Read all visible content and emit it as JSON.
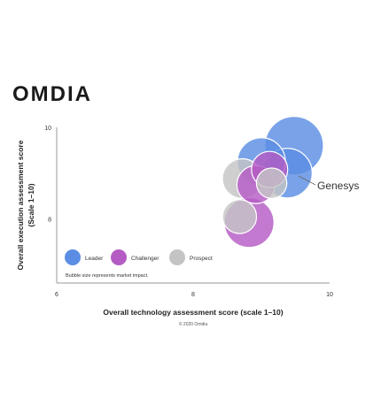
{
  "brand": {
    "logo_text": "OMDIA"
  },
  "footer": {
    "copyright": "© 2020 Omdia"
  },
  "chart_data": {
    "type": "bubble",
    "xlabel": "Overall technology assessment score (scale 1–10)",
    "ylabel_line1": "Overall execution assessment score",
    "ylabel_line2": "(Scale 1–10)",
    "x_ticks": [
      6,
      8,
      10
    ],
    "y_ticks": [
      8,
      10
    ],
    "xlim": [
      6,
      10
    ],
    "ylim": [
      6.6,
      10
    ],
    "grid": false,
    "legend": {
      "placement": "bottom-left",
      "entries": [
        {
          "label": "Leader",
          "color": "#5b8de3"
        },
        {
          "label": "Challenger",
          "color": "#b45cc4"
        },
        {
          "label": "Prospect",
          "color": "#c4c4c4"
        }
      ],
      "note": "Bubble size represents market impact."
    },
    "annotation": {
      "label": "Genesys",
      "x": 9.4,
      "y": 9.0
    },
    "points": [
      {
        "group": "Leader",
        "x": 9.48,
        "y": 9.6,
        "size": 1.0
      },
      {
        "group": "Leader",
        "x": 9.0,
        "y": 9.25,
        "size": 0.82
      },
      {
        "group": "Leader",
        "x": 9.38,
        "y": 9.0,
        "size": 0.85
      },
      {
        "group": "Challenger",
        "x": 8.82,
        "y": 7.92,
        "size": 0.85
      },
      {
        "group": "Challenger",
        "x": 9.12,
        "y": 9.08,
        "size": 0.62
      },
      {
        "group": "Challenger",
        "x": 8.92,
        "y": 8.75,
        "size": 0.65
      },
      {
        "group": "Prospect",
        "x": 8.72,
        "y": 8.88,
        "size": 0.68
      },
      {
        "group": "Prospect",
        "x": 8.68,
        "y": 8.05,
        "size": 0.58
      },
      {
        "group": "Prospect",
        "x": 9.15,
        "y": 8.78,
        "size": 0.52
      }
    ]
  }
}
